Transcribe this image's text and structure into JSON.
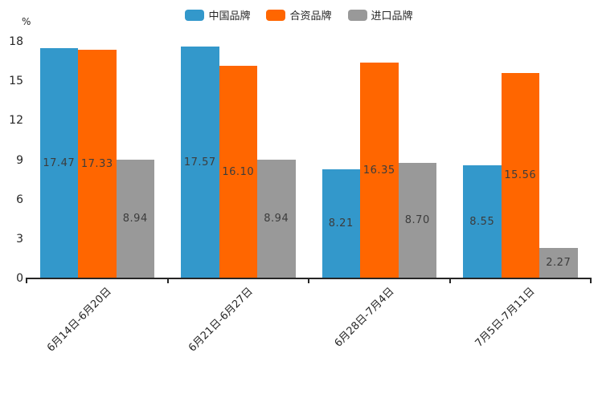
{
  "chart_data": {
    "type": "bar",
    "title": "",
    "xlabel": "",
    "ylabel": "%",
    "ylim": [
      0,
      18
    ],
    "yticks": [
      0,
      3,
      6,
      9,
      12,
      15,
      18
    ],
    "grid": false,
    "legend_position": "top-center",
    "categories": [
      "6月14日-6月20日",
      "6月21日-6月27日",
      "6月28日-7月4日",
      "7月5日-7月11日"
    ],
    "series": [
      {
        "name": "中国品牌",
        "color": "#3398CB",
        "values": [
          17.47,
          17.57,
          8.21,
          8.55
        ]
      },
      {
        "name": "合资品牌",
        "color": "#FF6600",
        "values": [
          17.33,
          16.1,
          16.35,
          15.56
        ]
      },
      {
        "name": "进口品牌",
        "color": "#999999",
        "values": [
          8.94,
          8.94,
          8.7,
          2.27
        ]
      }
    ],
    "value_label_decimals": 2,
    "axis_color": "#262626",
    "value_label_color": "#3c3c3c"
  }
}
